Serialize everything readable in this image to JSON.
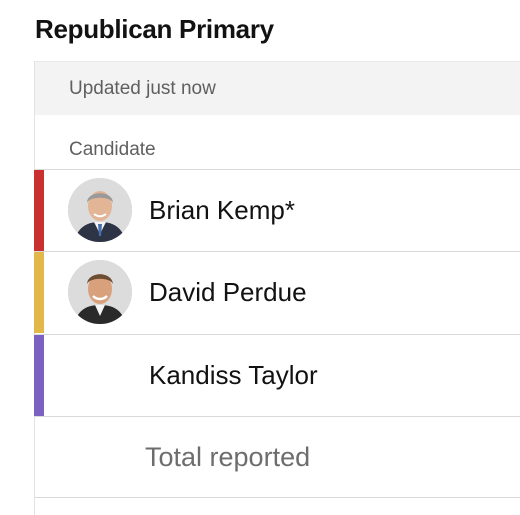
{
  "header": {
    "title": "Republican Primary"
  },
  "results_table": {
    "updated_text": "Updated just now",
    "column_header": "Candidate",
    "candidates": [
      {
        "name": "Brian Kemp*",
        "color": "#c93131",
        "avatar": "portrait-photo"
      },
      {
        "name": "David Perdue",
        "color": "#e2b84a",
        "avatar": "portrait-photo"
      },
      {
        "name": "Kandiss Taylor",
        "color": "#7b62c0"
      }
    ],
    "total_label": "Total reported"
  }
}
